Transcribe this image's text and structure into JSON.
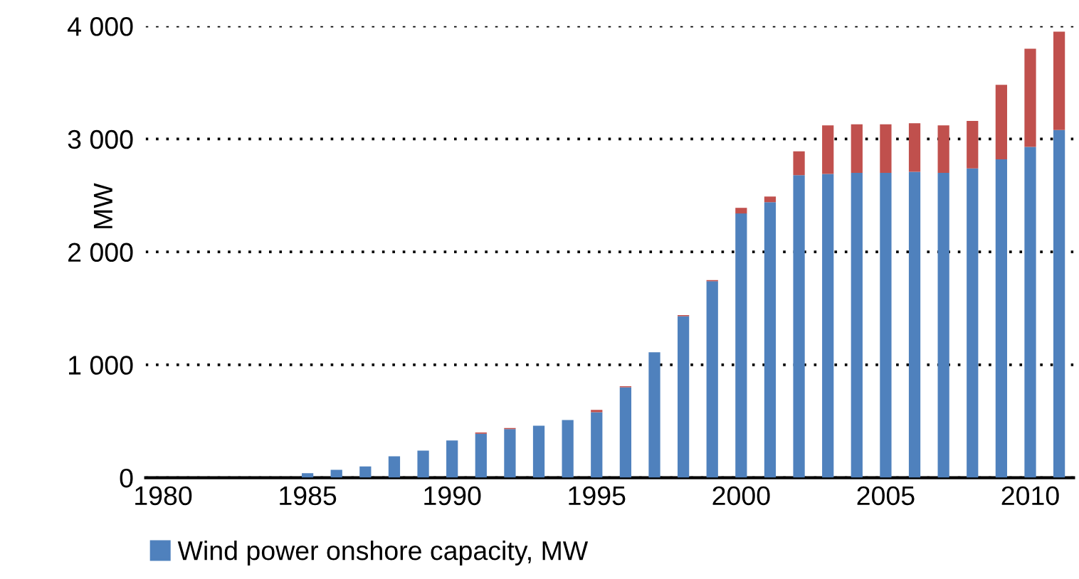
{
  "chart_data": {
    "type": "bar",
    "stacked": true,
    "ylabel": "MW",
    "categories": [
      "1980",
      null,
      null,
      null,
      null,
      "1985",
      null,
      null,
      null,
      null,
      "1990",
      null,
      null,
      null,
      null,
      "1995",
      null,
      null,
      null,
      null,
      "2000",
      null,
      null,
      null,
      null,
      "2005",
      null,
      null,
      null,
      null,
      "2010",
      null
    ],
    "series": [
      {
        "name": "Wind power onshore capacity, MW",
        "color": "#4f81bd",
        "values": [
          0,
          0,
          0,
          0,
          0,
          40,
          70,
          100,
          190,
          240,
          330,
          390,
          430,
          460,
          510,
          580,
          800,
          1110,
          1430,
          1740,
          2340,
          2440,
          2680,
          2690,
          2700,
          2700,
          2710,
          2700,
          2740,
          2820,
          2930,
          3080
        ]
      },
      {
        "color": "#c0504d",
        "values": [
          0,
          0,
          0,
          0,
          0,
          0,
          0,
          0,
          0,
          0,
          0,
          10,
          10,
          0,
          0,
          20,
          10,
          0,
          10,
          10,
          50,
          50,
          210,
          430,
          430,
          430,
          430,
          420,
          420,
          660,
          870,
          870
        ]
      }
    ],
    "ylim": [
      0,
      4000
    ],
    "yticks": [
      {
        "value": 0,
        "label": "0"
      },
      {
        "value": 1000,
        "label": "1 000"
      },
      {
        "value": 2000,
        "label": "2 000"
      },
      {
        "value": 3000,
        "label": "3 000"
      },
      {
        "value": 4000,
        "label": "4 000"
      }
    ],
    "grid": "y",
    "legend": "bottom left"
  }
}
